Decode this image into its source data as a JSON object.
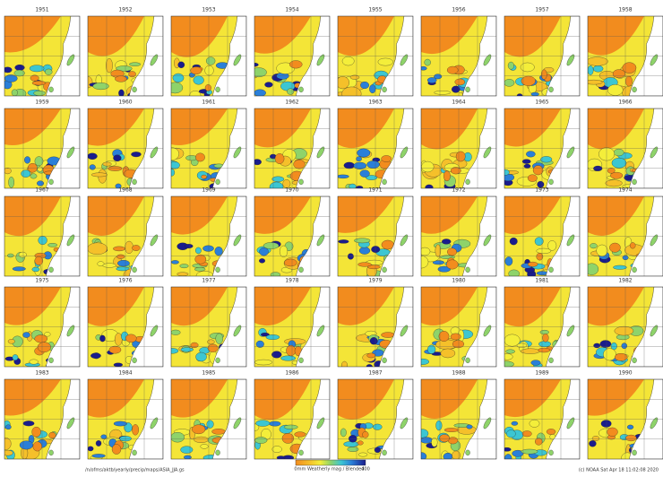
{
  "panels": [
    "1951",
    "1952",
    "1953",
    "1954",
    "1955",
    "1956",
    "1957",
    "1958",
    "1959",
    "1960",
    "1961",
    "1962",
    "1963",
    "1964",
    "1965",
    "1966",
    "1967",
    "1968",
    "1969",
    "1970",
    "1971",
    "1972",
    "1973",
    "1974",
    "1975",
    "1976",
    "1977",
    "1978",
    "1979",
    "1980",
    "1981",
    "1982",
    "1983",
    "1984",
    "1985",
    "1986",
    "1987",
    "1988",
    "1989",
    "1990"
  ],
  "footer": {
    "left": "/n/ofms/aktb/yearly/precip/maps/ASIA_JJA.gs",
    "colorbar_labels": [
      "0",
      "400"
    ],
    "colorbar_caption": "mm  Weatherly mag  /  Blended",
    "right": "(c) NOAA  Sat Apr 18 11:02:08 2020"
  }
}
